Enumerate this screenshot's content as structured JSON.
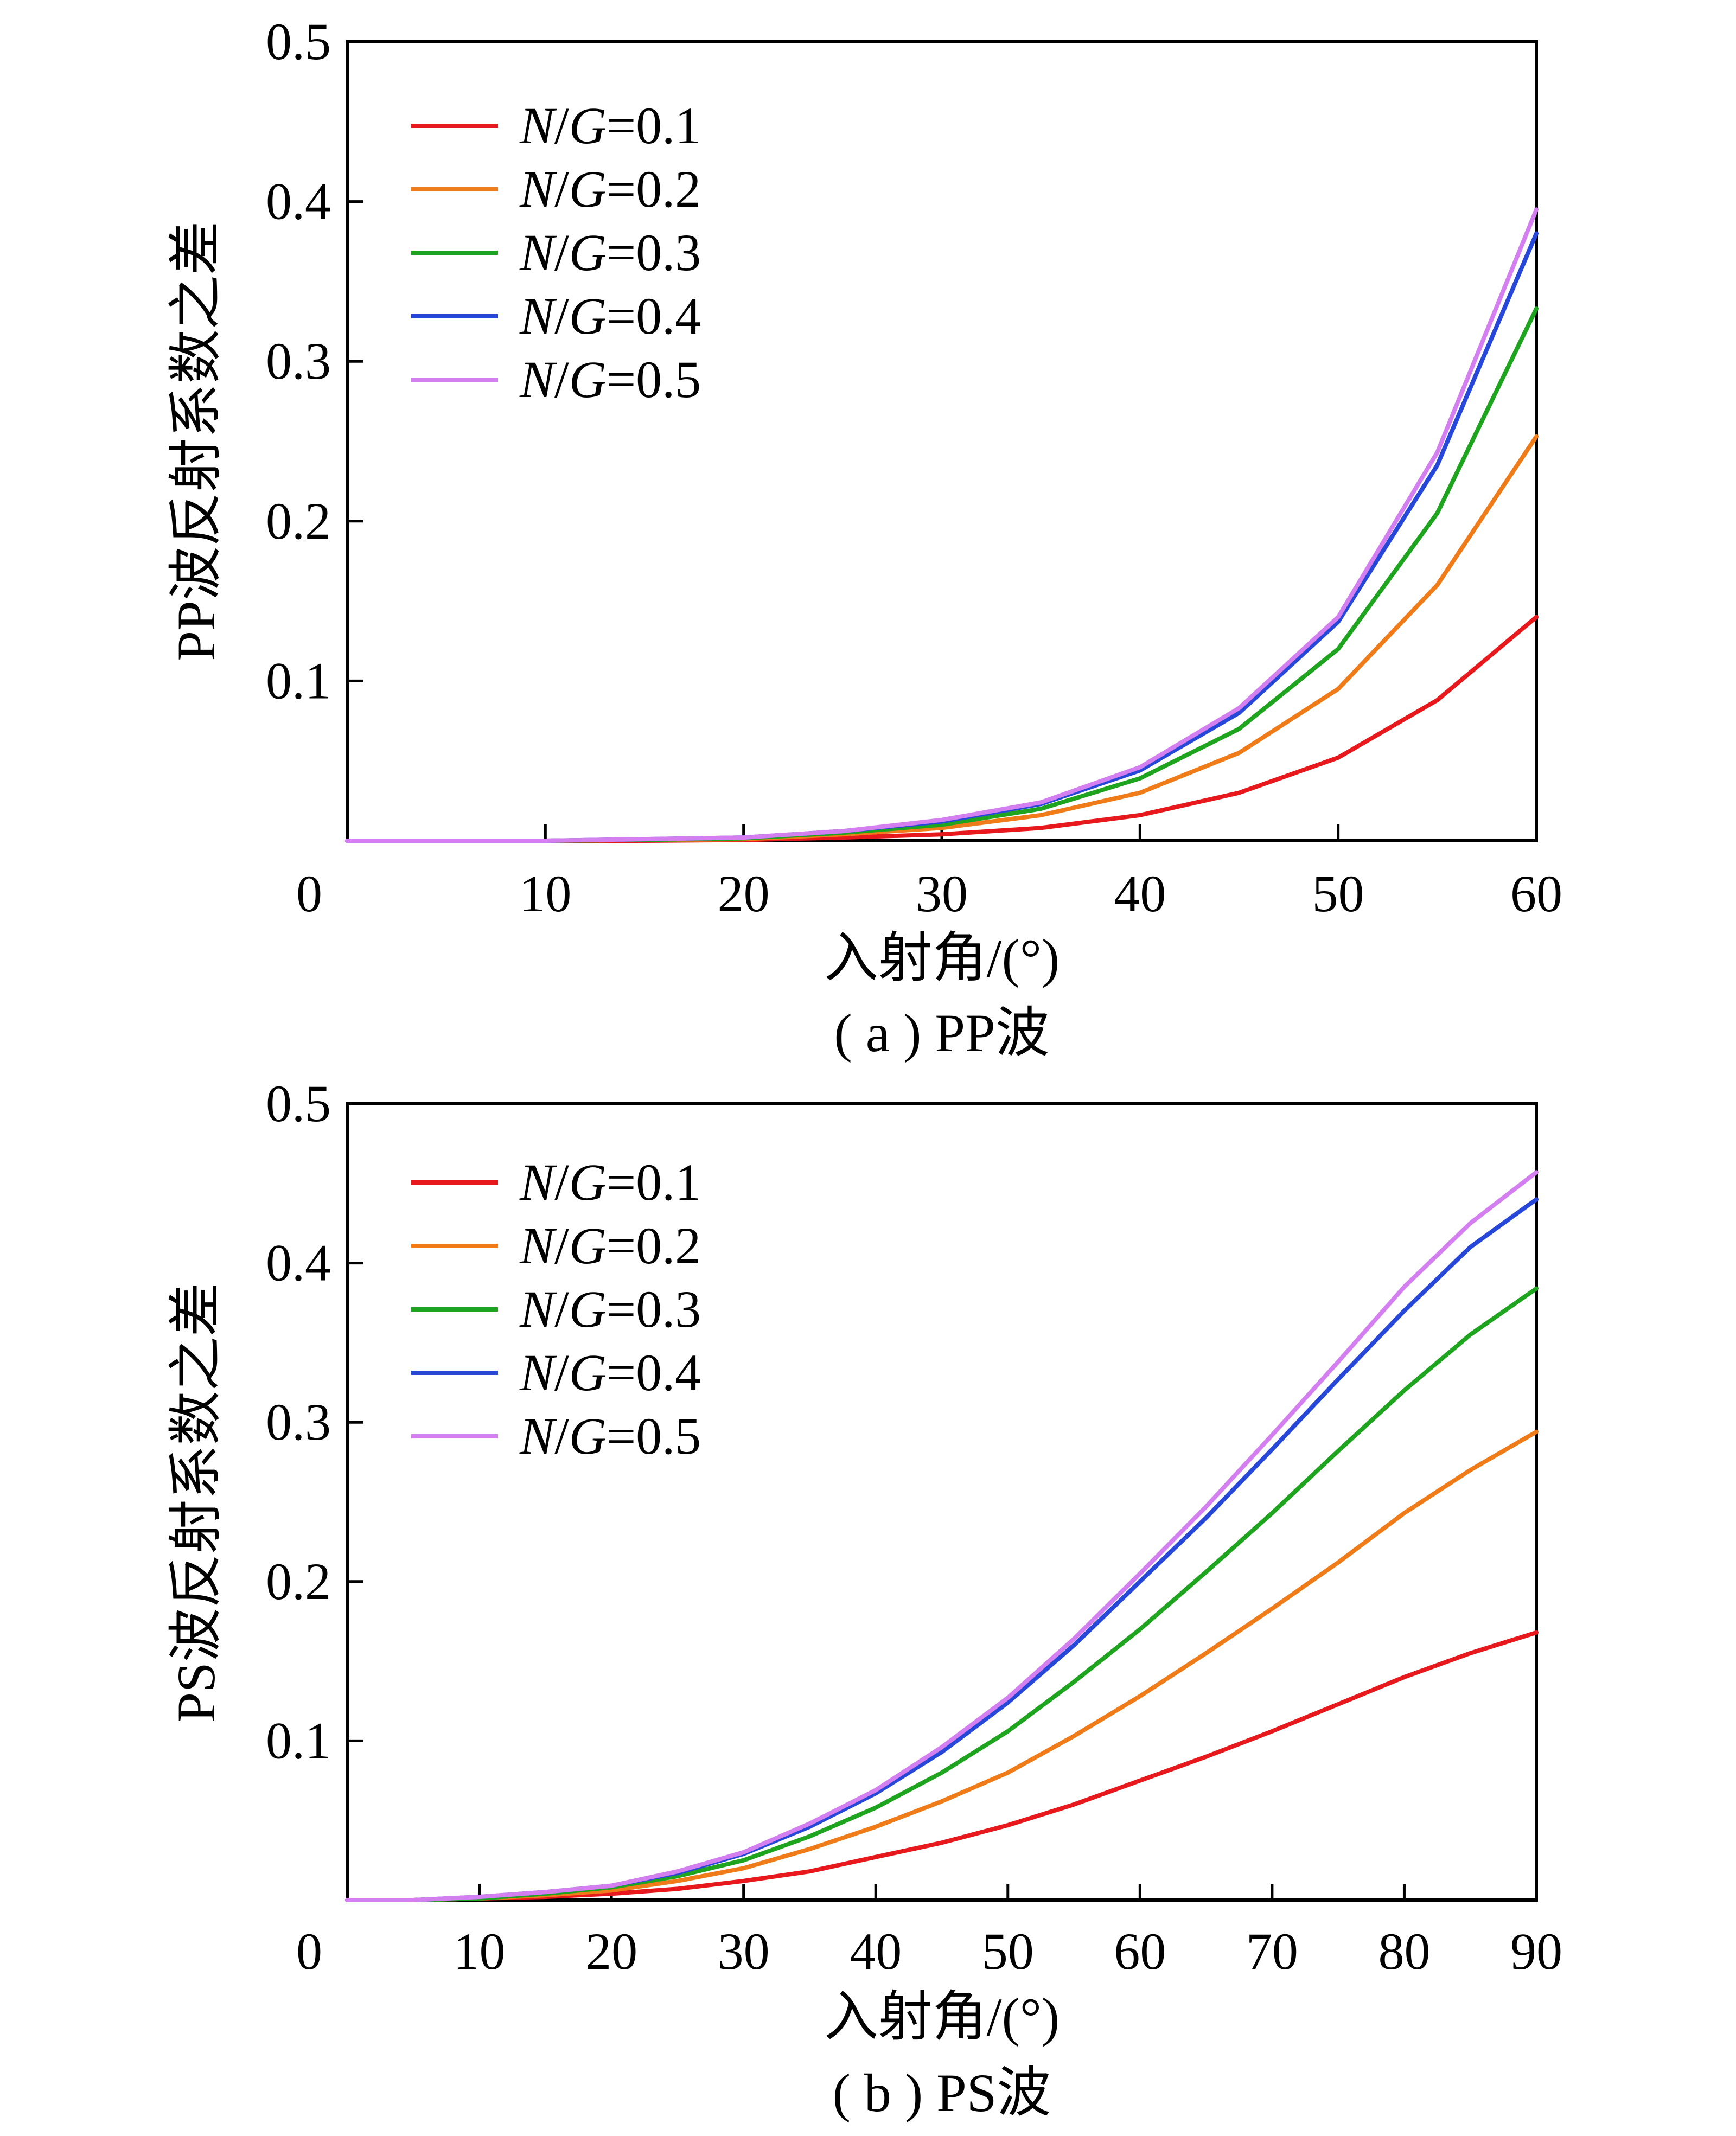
{
  "chart_data": [
    {
      "type": "line",
      "caption": "( a ) PP波",
      "xlabel": "入射角/(°)",
      "ylabel": "PP波反射系数之差",
      "xlim": [
        0,
        60
      ],
      "ylim": [
        0,
        0.5
      ],
      "xticks": [
        0,
        10,
        20,
        30,
        40,
        50,
        60
      ],
      "xtick_labels": [
        "0",
        "10",
        "20",
        "30",
        "40",
        "50",
        "60"
      ],
      "yticks": [
        0.1,
        0.2,
        0.3,
        0.4,
        0.5
      ],
      "ytick_labels": [
        "0.1",
        "0.2",
        "0.3",
        "0.4",
        "0.5"
      ],
      "legend_position": "top-left",
      "grid": false,
      "x": [
        0,
        5,
        10,
        15,
        20,
        25,
        30,
        35,
        40,
        45,
        50,
        55,
        60
      ],
      "series": [
        {
          "name": "N/G=0.1",
          "color": "#e8191c",
          "values": [
            0,
            0,
            0,
            0,
            0.0005,
            0.002,
            0.004,
            0.008,
            0.016,
            0.03,
            0.052,
            0.088,
            0.14
          ]
        },
        {
          "name": "N/G=0.2",
          "color": "#f07c19",
          "values": [
            0,
            0,
            0,
            0.0005,
            0.001,
            0.004,
            0.008,
            0.016,
            0.03,
            0.055,
            0.095,
            0.16,
            0.253
          ]
        },
        {
          "name": "N/G=0.3",
          "color": "#1fa41f",
          "values": [
            0,
            0,
            0,
            0.0005,
            0.0015,
            0.005,
            0.01,
            0.02,
            0.039,
            0.07,
            0.12,
            0.205,
            0.333
          ]
        },
        {
          "name": "N/G=0.4",
          "color": "#2747d9",
          "values": [
            0,
            0,
            0,
            0.001,
            0.002,
            0.006,
            0.012,
            0.023,
            0.044,
            0.08,
            0.137,
            0.235,
            0.38
          ]
        },
        {
          "name": "N/G=0.5",
          "color": "#d47fef",
          "values": [
            0,
            0,
            0,
            0.001,
            0.002,
            0.006,
            0.013,
            0.024,
            0.046,
            0.083,
            0.14,
            0.243,
            0.395
          ]
        }
      ]
    },
    {
      "type": "line",
      "caption": "( b ) PS波",
      "xlabel": "入射角/(°)",
      "ylabel": "PS波反射系数之差",
      "xlim": [
        0,
        90
      ],
      "ylim": [
        0,
        0.5
      ],
      "xticks": [
        0,
        10,
        20,
        30,
        40,
        50,
        60,
        70,
        80,
        90
      ],
      "xtick_labels": [
        "0",
        "10",
        "20",
        "30",
        "40",
        "50",
        "60",
        "70",
        "80",
        "90"
      ],
      "yticks": [
        0.1,
        0.2,
        0.3,
        0.4,
        0.5
      ],
      "ytick_labels": [
        "0.1",
        "0.2",
        "0.3",
        "0.4",
        "0.5"
      ],
      "legend_position": "top-left",
      "grid": false,
      "x": [
        0,
        5,
        10,
        15,
        20,
        25,
        30,
        35,
        40,
        45,
        50,
        55,
        60,
        65,
        70,
        75,
        80,
        85,
        90
      ],
      "series": [
        {
          "name": "N/G=0.1",
          "color": "#e8191c",
          "values": [
            0,
            0,
            0.001,
            0.002,
            0.004,
            0.007,
            0.012,
            0.018,
            0.027,
            0.036,
            0.047,
            0.06,
            0.075,
            0.09,
            0.106,
            0.123,
            0.14,
            0.155,
            0.168
          ]
        },
        {
          "name": "N/G=0.2",
          "color": "#f07c19",
          "values": [
            0,
            0,
            0.001,
            0.003,
            0.006,
            0.012,
            0.02,
            0.032,
            0.046,
            0.062,
            0.08,
            0.103,
            0.128,
            0.155,
            0.183,
            0.212,
            0.243,
            0.27,
            0.294
          ]
        },
        {
          "name": "N/G=0.3",
          "color": "#1fa41f",
          "values": [
            0,
            0,
            0.001,
            0.004,
            0.008,
            0.015,
            0.025,
            0.04,
            0.058,
            0.08,
            0.106,
            0.137,
            0.17,
            0.206,
            0.243,
            0.282,
            0.32,
            0.355,
            0.384
          ]
        },
        {
          "name": "N/G=0.4",
          "color": "#2747d9",
          "values": [
            0,
            0,
            0.002,
            0.005,
            0.009,
            0.017,
            0.029,
            0.046,
            0.067,
            0.093,
            0.124,
            0.16,
            0.2,
            0.24,
            0.283,
            0.327,
            0.37,
            0.41,
            0.44
          ]
        },
        {
          "name": "N/G=0.5",
          "color": "#d47fef",
          "values": [
            0,
            0,
            0.002,
            0.005,
            0.009,
            0.018,
            0.03,
            0.048,
            0.069,
            0.096,
            0.127,
            0.164,
            0.205,
            0.247,
            0.292,
            0.338,
            0.385,
            0.425,
            0.457
          ]
        }
      ]
    }
  ]
}
